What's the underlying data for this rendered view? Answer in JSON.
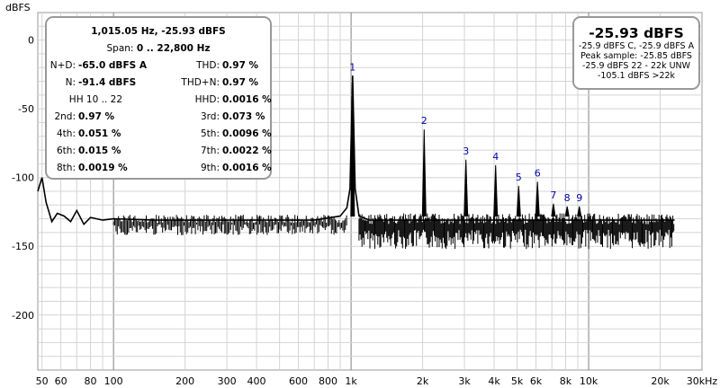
{
  "chart_data": {
    "type": "line",
    "title": "",
    "xlabel": "",
    "ylabel": "dBFS",
    "x_scale": "log",
    "xlim": [
      48,
      30000
    ],
    "ylim": [
      -240,
      20
    ],
    "grid": true,
    "x_ticks": [
      50,
      60,
      80,
      100,
      200,
      300,
      400,
      600,
      800,
      1000,
      2000,
      3000,
      4000,
      5000,
      6000,
      8000,
      10000,
      20000,
      30000
    ],
    "x_tick_labels": [
      "50",
      "60",
      "80",
      "100",
      "200",
      "300",
      "400",
      "600",
      "800",
      "1k",
      "2k",
      "3k",
      "4k",
      "5k",
      "6k",
      "8k",
      "10k",
      "20k",
      "30kHz"
    ],
    "y_ticks": [
      0,
      -50,
      -100,
      -150,
      -200
    ],
    "y_tick_labels": [
      "0",
      "-50",
      "-100",
      "-150",
      "-200"
    ],
    "series": [
      {
        "values": [
          [
            48,
            -110
          ],
          [
            50,
            -100
          ],
          [
            52,
            -118
          ],
          [
            55,
            -132
          ],
          [
            58,
            -126
          ],
          [
            62,
            -128
          ],
          [
            66,
            -132
          ],
          [
            70,
            -124
          ],
          [
            75,
            -134
          ],
          [
            80,
            -129
          ],
          [
            90,
            -131
          ],
          [
            100,
            -130
          ],
          [
            150,
            -131
          ],
          [
            200,
            -131
          ],
          [
            300,
            -131
          ],
          [
            500,
            -131
          ],
          [
            700,
            -131
          ],
          [
            900,
            -128
          ],
          [
            960,
            -122
          ],
          [
            990,
            -108
          ],
          [
            1015,
            -25.9
          ],
          [
            1040,
            -108
          ],
          [
            1080,
            -128
          ],
          [
            1200,
            -131
          ],
          [
            2000,
            -131
          ],
          [
            5000,
            -131
          ],
          [
            10000,
            -131
          ],
          [
            20000,
            -131
          ],
          [
            23000,
            -131
          ]
        ]
      }
    ],
    "harmonics": [
      {
        "label": "1",
        "freq": 1015,
        "level": -25.9
      },
      {
        "label": "2",
        "freq": 2030,
        "level": -65.0
      },
      {
        "label": "3",
        "freq": 3045,
        "level": -87.0
      },
      {
        "label": "4",
        "freq": 4060,
        "level": -91.0
      },
      {
        "label": "5",
        "freq": 5075,
        "level": -106.0
      },
      {
        "label": "6",
        "freq": 6090,
        "level": -103.0
      },
      {
        "label": "7",
        "freq": 7105,
        "level": -119.0
      },
      {
        "label": "8",
        "freq": 8120,
        "level": -121.0
      },
      {
        "label": "9",
        "freq": 9135,
        "level": -121.0
      }
    ],
    "colors": {
      "trace": "#000000",
      "harmonic_label": "#0000aa",
      "grid": "#d4d4d4",
      "grid_major": "#808080"
    }
  },
  "stats_panel": {
    "line1": "1,015.05 Hz, -25.93 dBFS",
    "span_label": "Span:",
    "span_value": "0 .. 22,800 Hz",
    "nd_label": "N+D:",
    "nd_value": "-65.0 dBFS A",
    "thd_label": "THD:",
    "thd_value": "0.97 %",
    "n_label": "N:",
    "n_value": "-91.4 dBFS",
    "thdn_label": "THD+N:",
    "thdn_value": "0.97 %",
    "hh_label": "HH 10 .. 22",
    "hhd_label": "HHD:",
    "hhd_value": "0.0016 %",
    "h2_label": "2nd:",
    "h2_value": "0.97 %",
    "h3_label": "3rd:",
    "h3_value": "0.073 %",
    "h4_label": "4th:",
    "h4_value": "0.051 %",
    "h5_label": "5th:",
    "h5_value": "0.0096 %",
    "h6_label": "6th:",
    "h6_value": "0.015 %",
    "h7_label": "7th:",
    "h7_value": "0.0022 %",
    "h8_label": "8th:",
    "h8_value": "0.0019 %",
    "h9_label": "9th:",
    "h9_value": "0.0016 %"
  },
  "peak_panel": {
    "big": "-25.93 dBFS",
    "line1": "-25.9 dBFS C, -25.9 dBFS A",
    "line2": "Peak sample: -25.85 dBFS",
    "line3": "-25.9 dBFS 22 - 22k UNW",
    "line4": "-105.1 dBFS >22k"
  }
}
